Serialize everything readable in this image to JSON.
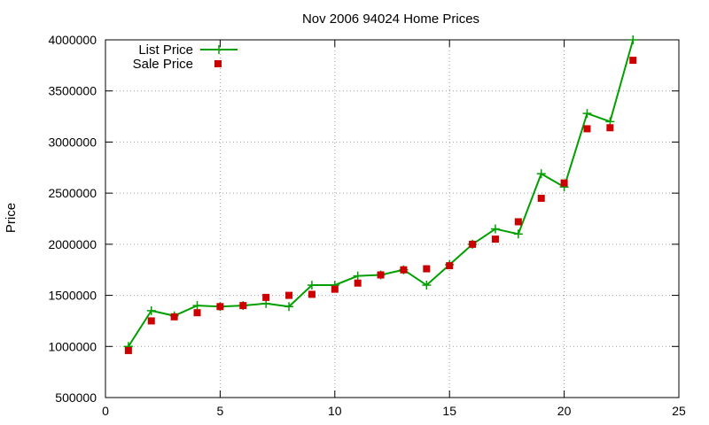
{
  "chart_data": {
    "type": "line",
    "title": "Nov 2006 94024 Home Prices",
    "xlabel": "",
    "ylabel": "Price",
    "xlim": [
      0,
      25
    ],
    "ylim": [
      500000,
      4000000
    ],
    "x_ticks": [
      "0",
      "5",
      "10",
      "15",
      "20",
      "25"
    ],
    "y_ticks": [
      "500000",
      "1000000",
      "1500000",
      "2000000",
      "2500000",
      "3000000",
      "3500000",
      "4000000"
    ],
    "grid": true,
    "legend_position": "top-left",
    "x": [
      1,
      2,
      3,
      4,
      5,
      6,
      7,
      8,
      9,
      10,
      11,
      12,
      13,
      14,
      15,
      16,
      17,
      18,
      19,
      20,
      21,
      22,
      23
    ],
    "series": [
      {
        "name": "List Price",
        "style": "line-plus",
        "color": "#00a000",
        "values": [
          1000000,
          1350000,
          1300000,
          1400000,
          1390000,
          1400000,
          1420000,
          1390000,
          1600000,
          1600000,
          1690000,
          1700000,
          1750000,
          1600000,
          1800000,
          2000000,
          2150000,
          2100000,
          2690000,
          2560000,
          3280000,
          3200000,
          4000000
        ]
      },
      {
        "name": "Sale Price",
        "style": "square-points",
        "color": "#cc0000",
        "values": [
          960000,
          1250000,
          1290000,
          1330000,
          1390000,
          1400000,
          1480000,
          1500000,
          1510000,
          1560000,
          1620000,
          1700000,
          1750000,
          1760000,
          1790000,
          2000000,
          2050000,
          2220000,
          2450000,
          2600000,
          3130000,
          3140000,
          3800000
        ]
      }
    ]
  }
}
